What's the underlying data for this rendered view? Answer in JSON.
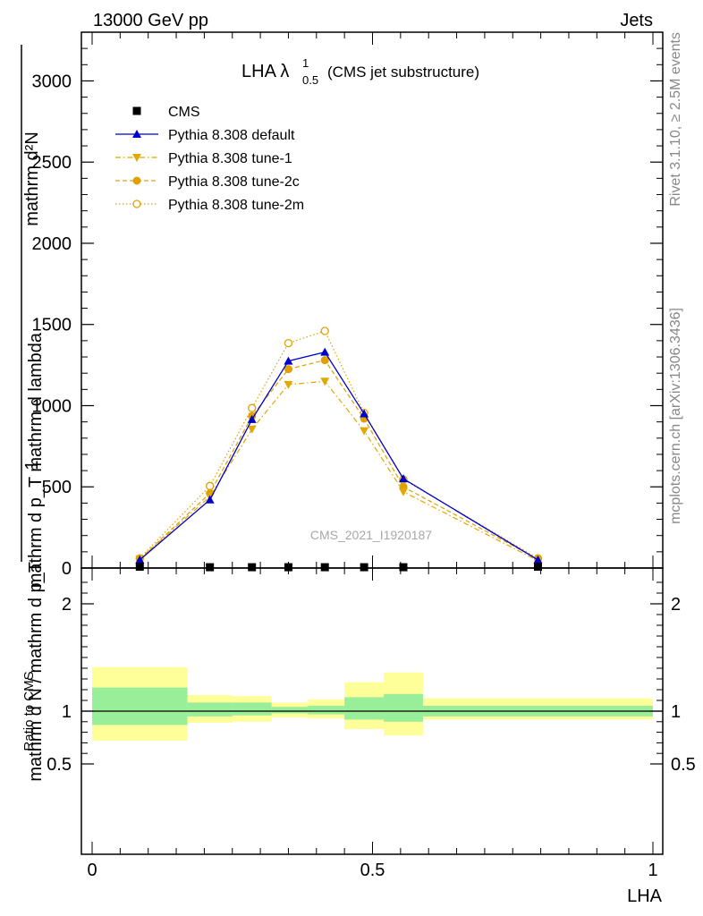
{
  "header": {
    "left": "13000 GeV pp",
    "right": "Jets"
  },
  "side_labels": {
    "rivet": "Rivet 3.1.10, ≥ 2.5M events",
    "mcplots": "mcplots.cern.ch [arXiv:1306.3436]"
  },
  "watermark": "CMS_2021_I1920187",
  "plot_title": {
    "main": "LHA λ",
    "sup": "1",
    "sub": "0.5",
    "suffix": "(CMS jet substructure)"
  },
  "axes": {
    "top_ylabel_numerator": "mathrm d²N",
    "top_ylabel_denominator": "mathrm d p_T mathrm d lambda",
    "top_ylabel_prefix_num": "1",
    "top_ylabel_prefix_den": "mathrm d N / mathrm d p_T",
    "ratio_ylabel": "Ratio to CMS",
    "xlabel": "LHA"
  },
  "chart_data": [
    {
      "type": "line",
      "panel": "main",
      "xlim": [
        0,
        1
      ],
      "ylim": [
        0,
        3300
      ],
      "yticks": [
        0,
        500,
        1000,
        1500,
        2000,
        2500,
        3000
      ],
      "ytick_labels": [
        "0",
        "500",
        "1000",
        "1500",
        "2000",
        "2500",
        "3000"
      ],
      "legend_position": "top-left",
      "x": [
        0.085,
        0.21,
        0.285,
        0.35,
        0.415,
        0.485,
        0.555,
        0.795
      ],
      "series": [
        {
          "name": "CMS",
          "marker": "square",
          "color": "#000000",
          "values": [
            8,
            5,
            5,
            5,
            5,
            5,
            5,
            8
          ]
        },
        {
          "name": "Pythia 8.308 default",
          "marker": "triangle-up",
          "color": "#0000cc",
          "line": "solid",
          "values": [
            50,
            420,
            915,
            1275,
            1330,
            950,
            550,
            50
          ]
        },
        {
          "name": "Pythia 8.308 tune-1",
          "marker": "triangle-down",
          "color": "#e0a800",
          "line": "dashdot",
          "values": [
            55,
            440,
            855,
            1130,
            1150,
            845,
            470,
            45
          ]
        },
        {
          "name": "Pythia 8.308 tune-2c",
          "marker": "circle",
          "color": "#e0a000",
          "line": "dashed",
          "values": [
            55,
            460,
            935,
            1225,
            1280,
            920,
            500,
            55
          ]
        },
        {
          "name": "Pythia 8.308 tune-2m",
          "marker": "circle-open",
          "color": "#e0a000",
          "line": "dotted",
          "values": [
            60,
            505,
            985,
            1385,
            1460,
            955,
            545,
            60
          ]
        }
      ]
    },
    {
      "type": "band",
      "panel": "ratio",
      "xlim": [
        0,
        1
      ],
      "ylim": [
        0.3,
        2.3
      ],
      "yticks": [
        0.5,
        1,
        2
      ],
      "ytick_labels": [
        "0.5",
        "1",
        "2"
      ],
      "xticks": [
        0,
        0.5,
        1
      ],
      "xtick_labels": [
        "0",
        "0.5",
        "1"
      ],
      "reference": 1,
      "bins": [
        {
          "x": [
            0,
            0.17
          ],
          "inner": [
            0.87,
            1.22
          ],
          "outer": [
            0.72,
            1.41
          ]
        },
        {
          "x": [
            0.17,
            0.25
          ],
          "inner": [
            0.95,
            1.08
          ],
          "outer": [
            0.89,
            1.15
          ]
        },
        {
          "x": [
            0.25,
            0.32
          ],
          "inner": [
            0.96,
            1.08
          ],
          "outer": [
            0.9,
            1.14
          ]
        },
        {
          "x": [
            0.32,
            0.385
          ],
          "inner": [
            0.98,
            1.04
          ],
          "outer": [
            0.94,
            1.08
          ]
        },
        {
          "x": [
            0.385,
            0.45
          ],
          "inner": [
            0.97,
            1.05
          ],
          "outer": [
            0.93,
            1.11
          ]
        },
        {
          "x": [
            0.45,
            0.52
          ],
          "inner": [
            0.92,
            1.13
          ],
          "outer": [
            0.83,
            1.27
          ]
        },
        {
          "x": [
            0.52,
            0.59
          ],
          "inner": [
            0.9,
            1.16
          ],
          "outer": [
            0.77,
            1.36
          ]
        },
        {
          "x": [
            0.59,
            1.0
          ],
          "inner": [
            0.95,
            1.05
          ],
          "outer": [
            0.92,
            1.12
          ]
        }
      ]
    }
  ]
}
